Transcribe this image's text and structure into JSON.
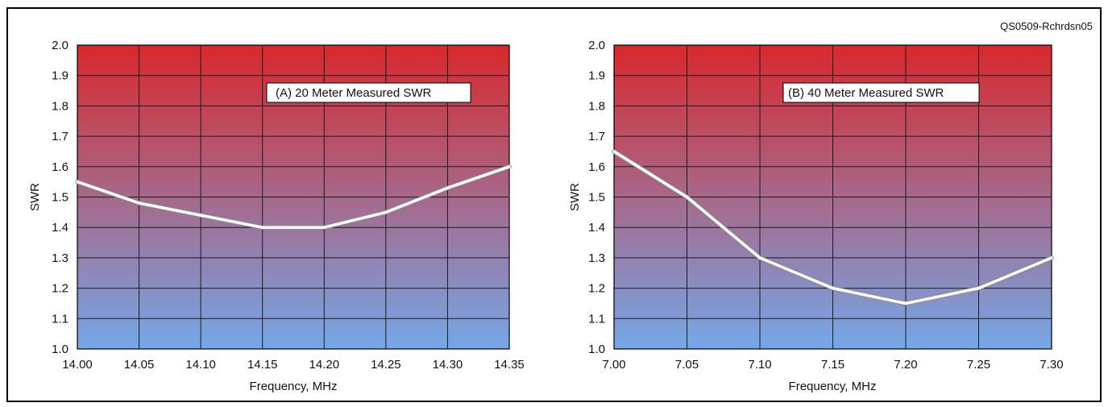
{
  "figure": {
    "figure_id": "QS0509-Rchrdsn05"
  },
  "chart_data": [
    {
      "type": "line",
      "annotation": "(A)  20 Meter Measured SWR",
      "xlabel": "Frequency, MHz",
      "ylabel": "SWR",
      "xlim": [
        14.0,
        14.35
      ],
      "ylim": [
        1.0,
        2.0
      ],
      "x_ticks": [
        "14.00",
        "14.05",
        "14.10",
        "14.15",
        "14.20",
        "14.25",
        "14.30",
        "14.35"
      ],
      "y_ticks": [
        "1.0",
        "1.1",
        "1.2",
        "1.3",
        "1.4",
        "1.5",
        "1.6",
        "1.7",
        "1.8",
        "1.9",
        "2.0"
      ],
      "grid": true,
      "background_gradient": {
        "top": "#d9282c",
        "bottom": "#74a8e8"
      },
      "line_color": "#ffffff",
      "series": [
        {
          "x": [
            14.0,
            14.05,
            14.1,
            14.15,
            14.2,
            14.25,
            14.3,
            14.35
          ],
          "y": [
            1.55,
            1.48,
            1.44,
            1.4,
            1.4,
            1.45,
            1.53,
            1.6
          ]
        }
      ]
    },
    {
      "type": "line",
      "annotation": "(B)  40 Meter Measured SWR",
      "xlabel": "Frequency, MHz",
      "ylabel": "SWR",
      "xlim": [
        7.0,
        7.3
      ],
      "ylim": [
        1.0,
        2.0
      ],
      "x_ticks": [
        "7.00",
        "7.05",
        "7.10",
        "7.15",
        "7.20",
        "7.25",
        "7.30"
      ],
      "y_ticks": [
        "1.0",
        "1.1",
        "1.2",
        "1.3",
        "1.4",
        "1.5",
        "1.6",
        "1.7",
        "1.8",
        "1.9",
        "2.0"
      ],
      "grid": true,
      "background_gradient": {
        "top": "#d9282c",
        "bottom": "#74a8e8"
      },
      "line_color": "#ffffff",
      "series": [
        {
          "x": [
            7.0,
            7.05,
            7.1,
            7.15,
            7.2,
            7.25,
            7.3
          ],
          "y": [
            1.65,
            1.5,
            1.3,
            1.2,
            1.15,
            1.2,
            1.3
          ]
        }
      ]
    }
  ]
}
